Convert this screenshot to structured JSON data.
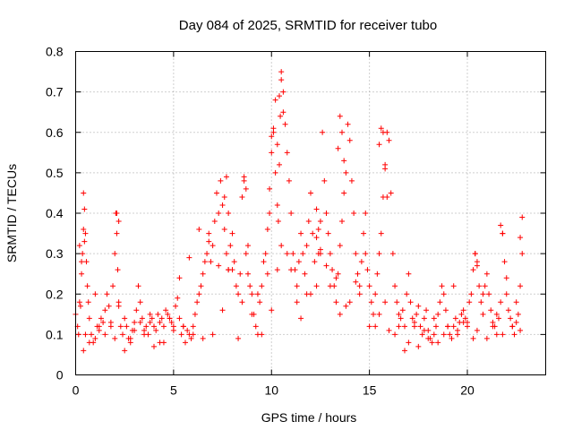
{
  "chart_data": {
    "type": "scatter",
    "title": "Day 084 of 2025, SRMTID for receiver tubo",
    "xlabel": "GPS time / hours",
    "ylabel": "SRMTID / TECUs",
    "xlim": [
      0,
      24
    ],
    "ylim": [
      0,
      0.8
    ],
    "xticks": [
      0,
      5,
      10,
      15,
      20
    ],
    "yticks": [
      0,
      0.1,
      0.2,
      0.3,
      0.4,
      0.5,
      0.6,
      0.7,
      0.8
    ],
    "xtick_labels": [
      "0",
      "5",
      "10",
      "15",
      "20"
    ],
    "ytick_labels": [
      "0",
      "0.1",
      "0.2",
      "0.3",
      "0.4",
      "0.5",
      "0.6",
      "0.7",
      "0.8"
    ],
    "grid": true,
    "marker": "+",
    "color": "#ff0000",
    "series": [
      {
        "name": "SRMTID",
        "x": [
          0.0,
          0.1,
          0.15,
          0.2,
          0.3,
          0.35,
          0.4,
          0.45,
          0.5,
          0.55,
          0.6,
          0.65,
          0.7,
          0.8,
          0.9,
          1.0,
          1.1,
          1.2,
          1.3,
          1.4,
          1.5,
          1.6,
          1.7,
          1.8,
          1.9,
          2.0,
          2.05,
          2.1,
          2.15,
          2.2,
          2.3,
          2.4,
          2.5,
          2.6,
          2.7,
          2.8,
          2.9,
          3.0,
          3.1,
          3.2,
          3.3,
          3.4,
          3.5,
          3.6,
          3.7,
          3.8,
          3.9,
          4.0,
          4.1,
          4.2,
          4.3,
          4.4,
          4.5,
          4.6,
          4.7,
          4.8,
          4.9,
          5.0,
          5.1,
          5.2,
          5.3,
          5.4,
          5.5,
          5.6,
          5.7,
          5.8,
          5.9,
          6.0,
          6.1,
          6.2,
          6.3,
          6.4,
          6.5,
          6.6,
          6.7,
          6.8,
          6.9,
          7.0,
          7.1,
          7.2,
          7.3,
          7.4,
          7.5,
          7.6,
          7.7,
          7.8,
          7.9,
          8.0,
          8.1,
          8.2,
          8.3,
          8.4,
          8.5,
          8.6,
          8.7,
          8.8,
          8.9,
          9.0,
          9.1,
          9.2,
          9.3,
          9.4,
          9.5,
          9.6,
          9.7,
          9.8,
          9.9,
          10.0,
          10.1,
          10.2,
          10.3,
          10.35,
          10.4,
          10.45,
          10.5,
          10.6,
          10.7,
          10.8,
          10.9,
          11.0,
          11.1,
          11.2,
          11.3,
          11.4,
          11.5,
          11.6,
          11.7,
          11.8,
          11.9,
          12.0,
          12.1,
          12.2,
          12.3,
          12.4,
          12.5,
          12.6,
          12.7,
          12.8,
          12.9,
          13.0,
          13.1,
          13.2,
          13.3,
          13.4,
          13.5,
          13.6,
          13.7,
          13.8,
          13.9,
          14.0,
          14.1,
          14.2,
          14.3,
          14.4,
          14.5,
          14.6,
          14.7,
          14.8,
          14.9,
          15.0,
          15.1,
          15.2,
          15.3,
          15.4,
          15.5,
          15.6,
          15.7,
          15.8,
          15.9,
          16.0,
          16.1,
          16.2,
          16.3,
          16.4,
          16.5,
          16.6,
          16.7,
          16.8,
          16.9,
          17.0,
          17.1,
          17.2,
          17.3,
          17.4,
          17.5,
          17.6,
          17.7,
          17.8,
          17.9,
          18.0,
          18.1,
          18.2,
          18.3,
          18.4,
          18.5,
          18.6,
          18.7,
          18.8,
          18.9,
          19.0,
          19.1,
          19.2,
          19.3,
          19.4,
          19.5,
          19.6,
          19.7,
          19.8,
          19.9,
          20.0,
          20.1,
          20.2,
          20.3,
          20.4,
          20.5,
          20.6,
          20.7,
          20.8,
          20.9,
          21.0,
          21.1,
          21.2,
          21.3,
          21.4,
          21.5,
          21.6,
          21.7,
          21.8,
          21.9,
          22.0,
          22.1,
          22.2,
          22.3,
          22.4,
          22.5,
          22.6,
          22.7,
          22.8,
          0.2,
          0.3,
          0.5,
          0.7,
          1.0,
          1.5,
          2.0,
          2.5,
          3.0,
          3.5,
          4.0,
          4.5,
          5.0,
          5.5,
          6.0,
          6.5,
          7.0,
          7.5,
          8.0,
          8.5,
          9.0,
          9.5,
          10.0,
          10.5,
          11.0,
          11.5,
          12.0,
          12.5,
          13.0,
          13.5,
          14.0,
          14.5,
          15.0,
          15.5,
          16.0,
          16.5,
          17.0,
          17.5,
          18.0,
          18.5,
          19.0,
          19.5,
          20.0,
          20.5,
          21.0,
          21.5,
          22.0,
          22.5,
          0.25,
          0.4,
          1.2,
          1.8,
          2.2,
          2.8,
          3.3,
          3.8,
          4.3,
          4.8,
          5.3,
          5.8,
          6.3,
          6.8,
          7.3,
          7.8,
          8.3,
          8.8,
          9.3,
          9.8,
          10.3,
          10.8,
          11.3,
          11.8,
          12.3,
          12.8,
          13.3,
          13.8,
          14.3,
          14.8,
          15.3,
          15.8,
          16.3,
          16.8,
          17.3,
          17.8,
          18.3,
          18.8,
          19.3,
          19.8,
          20.3,
          20.8,
          21.3,
          21.8,
          22.3,
          22.7,
          7.6,
          7.7,
          7.8,
          8.6,
          8.7,
          9.9,
          10.0,
          10.1,
          10.2,
          10.3,
          10.4,
          10.5,
          10.6,
          12.3,
          12.4,
          12.5,
          13.4,
          13.5,
          13.6,
          13.7,
          15.5,
          15.6,
          15.7,
          15.8,
          15.9,
          0.4,
          0.45,
          2.1,
          2.2,
          20.4,
          20.5,
          21.7,
          21.8,
          22.8,
          22.7
        ],
        "y": [
          0.15,
          0.12,
          0.1,
          0.18,
          0.25,
          0.3,
          0.45,
          0.41,
          0.35,
          0.28,
          0.22,
          0.18,
          0.14,
          0.1,
          0.08,
          0.09,
          0.12,
          0.11,
          0.14,
          0.13,
          0.16,
          0.2,
          0.17,
          0.12,
          0.22,
          0.3,
          0.4,
          0.35,
          0.26,
          0.18,
          0.12,
          0.1,
          0.14,
          0.12,
          0.09,
          0.08,
          0.11,
          0.13,
          0.16,
          0.22,
          0.18,
          0.14,
          0.11,
          0.12,
          0.1,
          0.13,
          0.14,
          0.12,
          0.11,
          0.15,
          0.13,
          0.14,
          0.12,
          0.16,
          0.15,
          0.14,
          0.13,
          0.12,
          0.17,
          0.19,
          0.14,
          0.1,
          0.12,
          0.08,
          0.11,
          0.1,
          0.09,
          0.12,
          0.15,
          0.18,
          0.2,
          0.22,
          0.25,
          0.28,
          0.3,
          0.35,
          0.28,
          0.32,
          0.38,
          0.45,
          0.4,
          0.48,
          0.42,
          0.36,
          0.3,
          0.26,
          0.32,
          0.35,
          0.28,
          0.22,
          0.2,
          0.25,
          0.44,
          0.48,
          0.3,
          0.25,
          0.22,
          0.2,
          0.15,
          0.12,
          0.1,
          0.18,
          0.22,
          0.28,
          0.3,
          0.25,
          0.4,
          0.55,
          0.6,
          0.5,
          0.42,
          0.38,
          0.52,
          0.64,
          0.73,
          0.7,
          0.62,
          0.55,
          0.48,
          0.4,
          0.3,
          0.26,
          0.22,
          0.28,
          0.35,
          0.3,
          0.25,
          0.32,
          0.38,
          0.45,
          0.35,
          0.28,
          0.22,
          0.3,
          0.38,
          0.6,
          0.48,
          0.4,
          0.35,
          0.3,
          0.26,
          0.22,
          0.18,
          0.25,
          0.32,
          0.38,
          0.45,
          0.5,
          0.62,
          0.58,
          0.48,
          0.4,
          0.3,
          0.25,
          0.22,
          0.28,
          0.35,
          0.3,
          0.26,
          0.22,
          0.18,
          0.15,
          0.2,
          0.25,
          0.3,
          0.35,
          0.44,
          0.52,
          0.6,
          0.58,
          0.45,
          0.3,
          0.22,
          0.18,
          0.15,
          0.14,
          0.16,
          0.12,
          0.2,
          0.25,
          0.18,
          0.14,
          0.13,
          0.15,
          0.17,
          0.12,
          0.1,
          0.14,
          0.16,
          0.11,
          0.09,
          0.08,
          0.1,
          0.12,
          0.15,
          0.18,
          0.22,
          0.2,
          0.16,
          0.12,
          0.1,
          0.09,
          0.12,
          0.14,
          0.11,
          0.13,
          0.15,
          0.16,
          0.14,
          0.13,
          0.18,
          0.2,
          0.26,
          0.3,
          0.28,
          0.22,
          0.18,
          0.15,
          0.22,
          0.25,
          0.2,
          0.16,
          0.13,
          0.12,
          0.15,
          0.14,
          0.18,
          0.35,
          0.28,
          0.2,
          0.16,
          0.14,
          0.12,
          0.1,
          0.13,
          0.15,
          0.22,
          0.3,
          0.32,
          0.28,
          0.1,
          0.08,
          0.2,
          0.1,
          0.09,
          0.06,
          0.11,
          0.1,
          0.07,
          0.08,
          0.11,
          0.12,
          0.1,
          0.09,
          0.1,
          0.16,
          0.26,
          0.18,
          0.15,
          0.1,
          0.16,
          0.32,
          0.26,
          0.14,
          0.2,
          0.3,
          0.22,
          0.15,
          0.18,
          0.2,
          0.12,
          0.15,
          0.11,
          0.12,
          0.08,
          0.07,
          0.09,
          0.08,
          0.12,
          0.1,
          0.12,
          0.11,
          0.09,
          0.1,
          0.24,
          0.18,
          0.17,
          0.06,
          0.12,
          0.13,
          0.17,
          0.09,
          0.13,
          0.15,
          0.08,
          0.14,
          0.24,
          0.29,
          0.36,
          0.33,
          0.27,
          0.26,
          0.09,
          0.32,
          0.2,
          0.36,
          0.26,
          0.3,
          0.18,
          0.2,
          0.34,
          0.27,
          0.24,
          0.17,
          0.23,
          0.4,
          0.12,
          0.18,
          0.1,
          0.06,
          0.12,
          0.11,
          0.14,
          0.1,
          0.22,
          0.13,
          0.09,
          0.2,
          0.12,
          0.1,
          0.12,
          0.11,
          0.44,
          0.49,
          0.4,
          0.49,
          0.46,
          0.46,
          0.59,
          0.61,
          0.68,
          0.57,
          0.69,
          0.75,
          0.65,
          0.41,
          0.36,
          0.31,
          0.56,
          0.64,
          0.6,
          0.53,
          0.57,
          0.61,
          0.6,
          0.51,
          0.44,
          0.36,
          0.33,
          0.4,
          0.38,
          0.3,
          0.27,
          0.37,
          0.35,
          0.39,
          0.34
        ]
      }
    ]
  }
}
